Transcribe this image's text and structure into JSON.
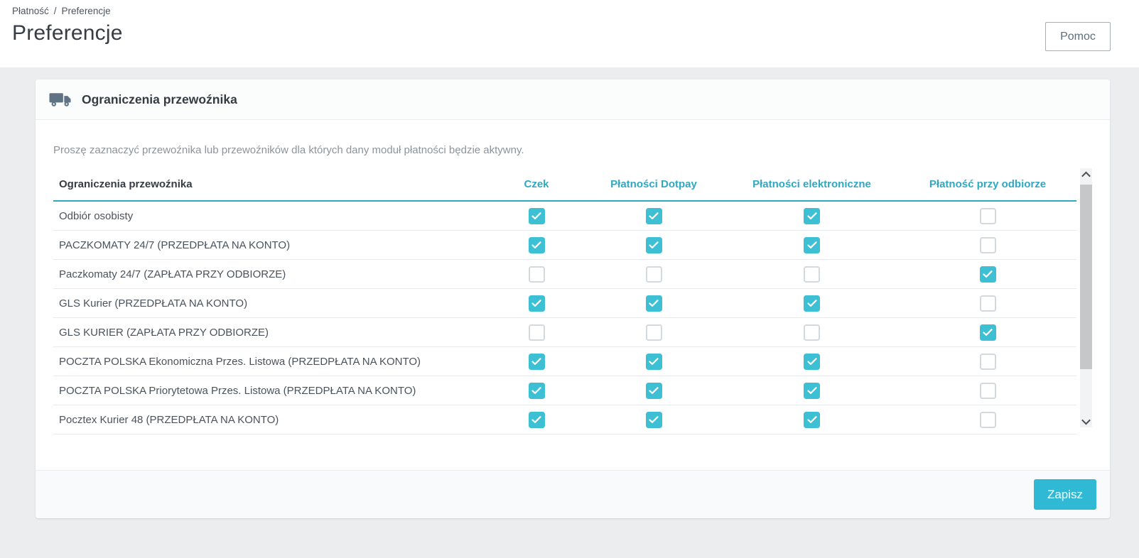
{
  "breadcrumb": {
    "items": [
      "Płatność",
      "Preferencje"
    ],
    "separator": "/"
  },
  "header": {
    "title": "Preferencje",
    "help_button": "Pomoc"
  },
  "panel": {
    "icon": "truck-icon",
    "title": "Ograniczenia przewoźnika",
    "description": "Proszę zaznaczyć przewoźnika lub przewoźników dla których dany moduł płatności będzie aktywny.",
    "save_button": "Zapisz"
  },
  "table": {
    "name_header": "Ograniczenia przewoźnika",
    "columns": [
      "Czek",
      "Płatności Dotpay",
      "Płatności elektroniczne",
      "Płatność przy odbiorze"
    ],
    "rows": [
      {
        "name": "Odbiór osobisty",
        "checks": [
          true,
          true,
          true,
          false
        ]
      },
      {
        "name": "PACZKOMATY 24/7 (PRZEDPŁATA NA KONTO)",
        "checks": [
          true,
          true,
          true,
          false
        ]
      },
      {
        "name": "Paczkomaty 24/7 (ZAPŁATA PRZY ODBIORZE)",
        "checks": [
          false,
          false,
          false,
          true
        ]
      },
      {
        "name": "GLS Kurier (PRZEDPŁATA NA KONTO)",
        "checks": [
          true,
          true,
          true,
          false
        ]
      },
      {
        "name": "GLS KURIER (ZAPŁATA PRZY ODBIORZE)",
        "checks": [
          false,
          false,
          false,
          true
        ]
      },
      {
        "name": "POCZTA POLSKA Ekonomiczna Przes. Listowa (PRZEDPŁATA NA KONTO)",
        "checks": [
          true,
          true,
          true,
          false
        ]
      },
      {
        "name": "POCZTA POLSKA Priorytetowa Przes. Listowa (PRZEDPŁATA NA KONTO)",
        "checks": [
          true,
          true,
          true,
          false
        ]
      },
      {
        "name": "Pocztex Kurier 48 (PRZEDPŁATA NA KONTO)",
        "checks": [
          true,
          true,
          true,
          false
        ]
      }
    ]
  },
  "colors": {
    "accent": "#2fa8c2",
    "checkbox_checked": "#3dc0d4",
    "save_button": "#2fb9d4",
    "panel_icon": "#5f7384"
  }
}
